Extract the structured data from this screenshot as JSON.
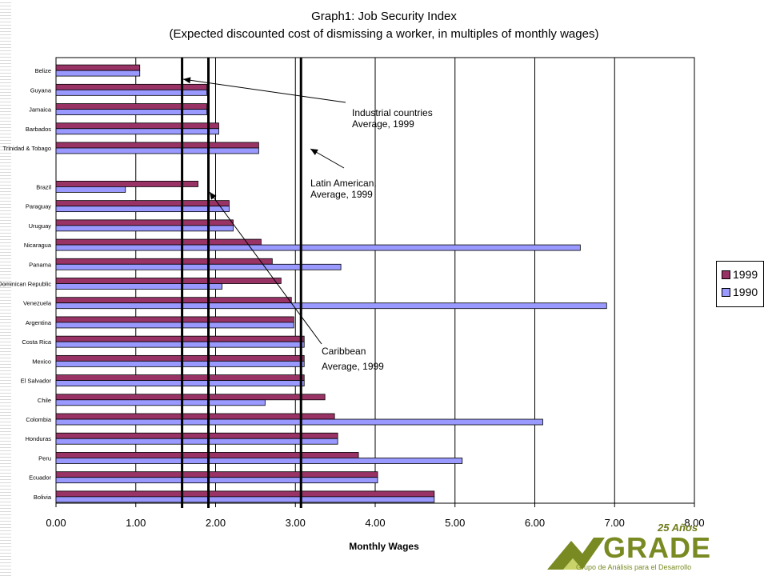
{
  "title": "Graph1: Job Security Index",
  "subtitle": "(Expected discounted cost of dismissing a worker, in multiples of monthly wages)",
  "chart_data": {
    "type": "bar",
    "orientation": "horizontal",
    "categories": [
      "Belize",
      "Guyana",
      "Jamaica",
      "Barbados",
      "Trinidad & Tobago",
      "",
      "Brazil",
      "Paraguay",
      "Uruguay",
      "Nicaragua",
      "Panama",
      "Dominican Republic",
      "Venezuela",
      "Argentina",
      "Costa Rica",
      "Mexico",
      "El Salvador",
      "Chile",
      "Colombia",
      "Honduras",
      "Peru",
      "Ecuador",
      "Bolivia"
    ],
    "series": [
      {
        "name": "1999",
        "color": "#993366",
        "values": [
          1.05,
          1.89,
          1.89,
          2.04,
          2.54,
          null,
          1.78,
          2.17,
          2.22,
          2.57,
          2.71,
          2.82,
          2.95,
          2.98,
          3.11,
          3.11,
          3.11,
          3.37,
          3.49,
          3.53,
          3.79,
          4.03,
          4.74
        ]
      },
      {
        "name": "1990",
        "color": "#9999ff",
        "values": [
          1.05,
          1.89,
          1.89,
          2.04,
          2.54,
          null,
          0.87,
          2.17,
          2.22,
          6.57,
          3.57,
          2.08,
          6.9,
          2.98,
          3.11,
          3.11,
          3.11,
          2.62,
          6.1,
          3.53,
          5.09,
          4.03,
          4.74
        ]
      }
    ],
    "xlabel": "Monthly Wages",
    "xlim": [
      0,
      8
    ],
    "xticks": [
      "0.00",
      "1.00",
      "2.00",
      "3.00",
      "4.00",
      "5.00",
      "6.00",
      "7.00",
      "8.00"
    ],
    "grid": "vertical",
    "legend_position": "right",
    "reference_lines": [
      {
        "label": "Industrial countries Average, 1999",
        "value": 1.58
      },
      {
        "label": "Caribbean Average, 1999",
        "value": 1.91
      },
      {
        "label": "Latin American, Average, 1999",
        "value": 3.07
      }
    ]
  },
  "annotations": {
    "industrial_line1": "Industrial countries",
    "industrial_line2": "Average, 1999",
    "latam_line1": "Latin American,",
    "latam_line2": "Average, 1999",
    "caribbean_line1": "Caribbean",
    "caribbean_line2": "Average, 1999"
  },
  "logo": {
    "badge": "25 Años",
    "name": "GRADE",
    "tagline": "Grupo de Análisis para el Desarrollo",
    "color": "#7a8a22"
  }
}
